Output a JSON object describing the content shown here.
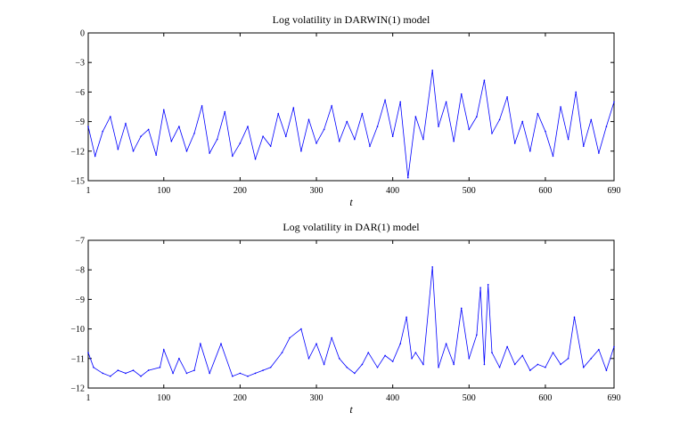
{
  "chart_data": [
    {
      "type": "line",
      "title": "Log volatility in DARWIN(1) model",
      "xlabel": "t",
      "ylabel": "",
      "xlim": [
        1,
        690
      ],
      "ylim": [
        -15,
        0
      ],
      "xticks": [
        1,
        100,
        200,
        300,
        400,
        500,
        600,
        690
      ],
      "yticks": [
        0,
        -3,
        -6,
        -9,
        -12,
        -15
      ],
      "color": "#0000ff",
      "grid": false,
      "notes": "Noisy series mostly between -13 and -6; peak near t=452 about -3.8; low near t=422 about -14.7",
      "x": [
        1,
        10,
        20,
        30,
        40,
        50,
        60,
        70,
        80,
        90,
        100,
        110,
        120,
        130,
        140,
        150,
        160,
        170,
        180,
        190,
        200,
        210,
        220,
        230,
        240,
        250,
        260,
        270,
        280,
        290,
        300,
        310,
        320,
        330,
        340,
        350,
        360,
        370,
        380,
        390,
        400,
        410,
        420,
        430,
        440,
        452,
        460,
        470,
        480,
        490,
        500,
        510,
        520,
        530,
        540,
        550,
        560,
        570,
        580,
        590,
        600,
        610,
        620,
        630,
        640,
        650,
        660,
        670,
        680,
        690
      ],
      "values": [
        -9.5,
        -12.5,
        -10.0,
        -8.5,
        -11.8,
        -9.2,
        -12.0,
        -10.5,
        -9.8,
        -12.4,
        -7.8,
        -11.0,
        -9.5,
        -12.0,
        -10.2,
        -7.4,
        -12.2,
        -10.8,
        -8.0,
        -12.5,
        -11.2,
        -9.5,
        -12.8,
        -10.5,
        -11.5,
        -8.2,
        -10.5,
        -7.6,
        -12.0,
        -8.8,
        -11.2,
        -9.8,
        -7.4,
        -11.0,
        -9.0,
        -10.8,
        -8.2,
        -11.5,
        -9.5,
        -6.8,
        -10.5,
        -7.0,
        -14.7,
        -8.5,
        -10.8,
        -3.8,
        -9.5,
        -7.0,
        -11.0,
        -6.2,
        -9.8,
        -8.5,
        -4.8,
        -10.2,
        -8.8,
        -6.5,
        -11.2,
        -9.0,
        -12.0,
        -8.2,
        -10.0,
        -12.5,
        -7.5,
        -10.8,
        -6.0,
        -11.5,
        -8.8,
        -12.2,
        -9.5,
        -7.0
      ]
    },
    {
      "type": "line",
      "title": "Log volatility in DAR(1) model",
      "xlabel": "t",
      "ylabel": "",
      "xlim": [
        1,
        690
      ],
      "ylim": [
        -12,
        -7
      ],
      "xticks": [
        1,
        100,
        200,
        300,
        400,
        500,
        600,
        690
      ],
      "yticks": [
        -7,
        -8,
        -9,
        -10,
        -11,
        -12
      ],
      "color": "#0000ff",
      "grid": false,
      "notes": "Baseline near -11.5 with spikes; largest near t=452 about -7.9, others near t=520-525 about -8.5",
      "x": [
        1,
        8,
        20,
        30,
        40,
        50,
        60,
        70,
        80,
        95,
        100,
        112,
        120,
        130,
        140,
        148,
        160,
        175,
        190,
        200,
        210,
        220,
        230,
        240,
        255,
        265,
        280,
        290,
        300,
        310,
        320,
        330,
        340,
        350,
        360,
        368,
        380,
        390,
        400,
        410,
        418,
        425,
        430,
        440,
        452,
        460,
        470,
        480,
        490,
        500,
        510,
        515,
        520,
        525,
        530,
        540,
        550,
        560,
        570,
        580,
        590,
        600,
        610,
        620,
        630,
        638,
        650,
        660,
        670,
        680,
        690
      ],
      "values": [
        -10.8,
        -11.3,
        -11.5,
        -11.6,
        -11.4,
        -11.5,
        -11.4,
        -11.6,
        -11.4,
        -11.3,
        -10.7,
        -11.5,
        -11.0,
        -11.5,
        -11.4,
        -10.5,
        -11.5,
        -10.5,
        -11.6,
        -11.5,
        -11.6,
        -11.5,
        -11.4,
        -11.3,
        -10.8,
        -10.3,
        -10.0,
        -11.0,
        -10.5,
        -11.2,
        -10.3,
        -11.0,
        -11.3,
        -11.5,
        -11.2,
        -10.8,
        -11.3,
        -10.9,
        -11.1,
        -10.5,
        -9.6,
        -11.0,
        -10.8,
        -11.2,
        -7.9,
        -11.3,
        -10.5,
        -11.2,
        -9.3,
        -11.0,
        -10.2,
        -8.6,
        -11.2,
        -8.5,
        -10.8,
        -11.3,
        -10.6,
        -11.2,
        -10.9,
        -11.4,
        -11.2,
        -11.3,
        -10.8,
        -11.2,
        -11.0,
        -9.6,
        -11.3,
        -11.0,
        -10.7,
        -11.4,
        -10.6
      ]
    }
  ]
}
